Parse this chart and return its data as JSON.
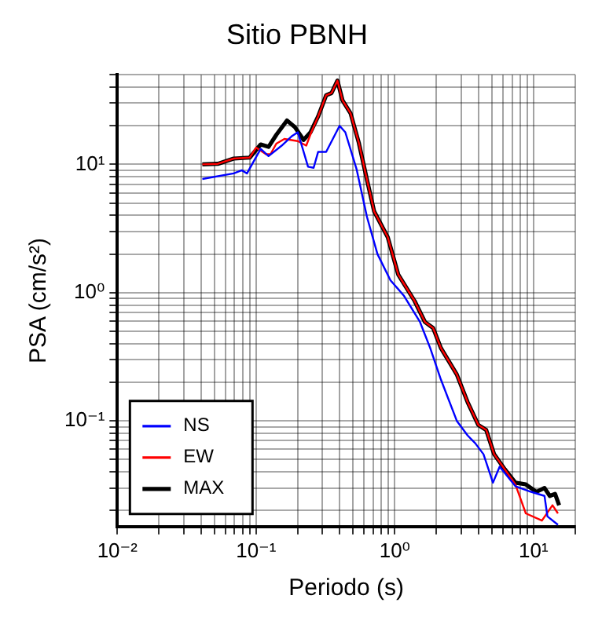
{
  "chart_data": {
    "type": "line",
    "title": "Sitio PBNH",
    "xlabel": "Periodo (s)",
    "ylabel": "PSA (cm/s²)",
    "log": "xy",
    "grid": true,
    "legend": "bottom left",
    "xlim": [
      0.01,
      20
    ],
    "ylim": [
      0.015,
      50
    ],
    "xticks": [
      {
        "value": 0.01,
        "label": "10⁻²"
      },
      {
        "value": 0.02,
        "label": null
      },
      {
        "value": 0.03,
        "label": null
      },
      {
        "value": 0.04,
        "label": null
      },
      {
        "value": 0.05,
        "label": null
      },
      {
        "value": 0.06,
        "label": null
      },
      {
        "value": 0.07,
        "label": null
      },
      {
        "value": 0.08,
        "label": null
      },
      {
        "value": 0.09,
        "label": null
      },
      {
        "value": 0.1,
        "label": "10⁻¹"
      },
      {
        "value": 0.2,
        "label": null
      },
      {
        "value": 0.3,
        "label": null
      },
      {
        "value": 0.4,
        "label": null
      },
      {
        "value": 0.5,
        "label": null
      },
      {
        "value": 0.6,
        "label": null
      },
      {
        "value": 0.7,
        "label": null
      },
      {
        "value": 0.8,
        "label": null
      },
      {
        "value": 0.9,
        "label": null
      },
      {
        "value": 1,
        "label": "10⁰"
      },
      {
        "value": 2,
        "label": null
      },
      {
        "value": 3,
        "label": null
      },
      {
        "value": 4,
        "label": null
      },
      {
        "value": 5,
        "label": null
      },
      {
        "value": 6,
        "label": null
      },
      {
        "value": 7,
        "label": null
      },
      {
        "value": 8,
        "label": null
      },
      {
        "value": 9,
        "label": null
      },
      {
        "value": 10,
        "label": "10¹"
      },
      {
        "value": 20,
        "label": null
      }
    ],
    "yticks": [
      {
        "value": 0.02,
        "label": null
      },
      {
        "value": 0.03,
        "label": null
      },
      {
        "value": 0.04,
        "label": null
      },
      {
        "value": 0.05,
        "label": null
      },
      {
        "value": 0.06,
        "label": null
      },
      {
        "value": 0.07,
        "label": null
      },
      {
        "value": 0.08,
        "label": null
      },
      {
        "value": 0.09,
        "label": null
      },
      {
        "value": 0.1,
        "label": "10⁻¹"
      },
      {
        "value": 0.2,
        "label": null
      },
      {
        "value": 0.3,
        "label": null
      },
      {
        "value": 0.4,
        "label": null
      },
      {
        "value": 0.5,
        "label": null
      },
      {
        "value": 0.6,
        "label": null
      },
      {
        "value": 0.7,
        "label": null
      },
      {
        "value": 0.8,
        "label": null
      },
      {
        "value": 0.9,
        "label": null
      },
      {
        "value": 1,
        "label": "10⁰"
      },
      {
        "value": 2,
        "label": null
      },
      {
        "value": 3,
        "label": null
      },
      {
        "value": 4,
        "label": null
      },
      {
        "value": 5,
        "label": null
      },
      {
        "value": 6,
        "label": null
      },
      {
        "value": 7,
        "label": null
      },
      {
        "value": 8,
        "label": null
      },
      {
        "value": 9,
        "label": null
      },
      {
        "value": 10,
        "label": "10¹"
      },
      {
        "value": 20,
        "label": null
      },
      {
        "value": 30,
        "label": null
      },
      {
        "value": 40,
        "label": null
      },
      {
        "value": 50,
        "label": null
      }
    ],
    "series": [
      {
        "name": "NS",
        "color": "#0000ff",
        "x": [
          0.041,
          0.069,
          0.079,
          0.086,
          0.108,
          0.123,
          0.153,
          0.18,
          0.2,
          0.237,
          0.26,
          0.28,
          0.32,
          0.4,
          0.44,
          0.53,
          0.63,
          0.75,
          0.93,
          1.16,
          1.52,
          1.8,
          2.15,
          2.8,
          3.35,
          3.8,
          4.36,
          5.1,
          5.7,
          7.4,
          9.6,
          12,
          12.6,
          15
        ],
        "values": [
          7.7,
          8.5,
          9.0,
          8.5,
          13.2,
          11.6,
          14,
          16.5,
          17.8,
          9.6,
          9.4,
          12.5,
          12.5,
          20,
          17.8,
          9.2,
          3.9,
          2.0,
          1.25,
          0.95,
          0.59,
          0.37,
          0.21,
          0.1,
          0.077,
          0.067,
          0.055,
          0.033,
          0.044,
          0.031,
          0.028,
          0.026,
          0.018,
          0.0155
        ]
      },
      {
        "name": "EW",
        "color": "#ff0000",
        "x": [
          0.041,
          0.053,
          0.069,
          0.09,
          0.1,
          0.118,
          0.127,
          0.14,
          0.16,
          0.2,
          0.23,
          0.25,
          0.28,
          0.32,
          0.35,
          0.386,
          0.42,
          0.48,
          0.55,
          0.63,
          0.71,
          0.89,
          1.06,
          1.39,
          1.65,
          1.89,
          2.15,
          2.8,
          3.35,
          4.0,
          4.56,
          5.2,
          6.2,
          7.4,
          8.8,
          11.5,
          13.7,
          15
        ],
        "values": [
          10,
          10.1,
          11.1,
          11.3,
          13.5,
          12.0,
          12.0,
          14.5,
          15.8,
          15.2,
          14.0,
          17.8,
          23.6,
          34.6,
          36,
          45,
          31.5,
          25,
          14.8,
          7.6,
          4.3,
          2.7,
          1.38,
          0.86,
          0.59,
          0.53,
          0.37,
          0.23,
          0.14,
          0.093,
          0.085,
          0.055,
          0.042,
          0.032,
          0.019,
          0.0167,
          0.022,
          0.019
        ]
      },
      {
        "name": "MAX",
        "color": "#000000",
        "x": [
          0.041,
          0.053,
          0.069,
          0.09,
          0.108,
          0.123,
          0.14,
          0.167,
          0.19,
          0.22,
          0.247,
          0.28,
          0.32,
          0.35,
          0.386,
          0.42,
          0.48,
          0.55,
          0.63,
          0.71,
          0.89,
          1.06,
          1.39,
          1.65,
          1.89,
          2.15,
          2.8,
          3.35,
          4.0,
          4.56,
          5.2,
          6.2,
          7.4,
          8.8,
          10.5,
          12,
          13.1,
          14.3,
          15.3
        ],
        "values": [
          10,
          10.1,
          11.1,
          11.3,
          14.3,
          13.7,
          17,
          22,
          19.6,
          15.5,
          17.8,
          23.6,
          34.6,
          36,
          45,
          31.5,
          25,
          14.8,
          7.6,
          4.3,
          2.7,
          1.38,
          0.86,
          0.59,
          0.53,
          0.37,
          0.23,
          0.14,
          0.093,
          0.085,
          0.055,
          0.042,
          0.033,
          0.032,
          0.028,
          0.03,
          0.026,
          0.027,
          0.022
        ]
      }
    ]
  }
}
